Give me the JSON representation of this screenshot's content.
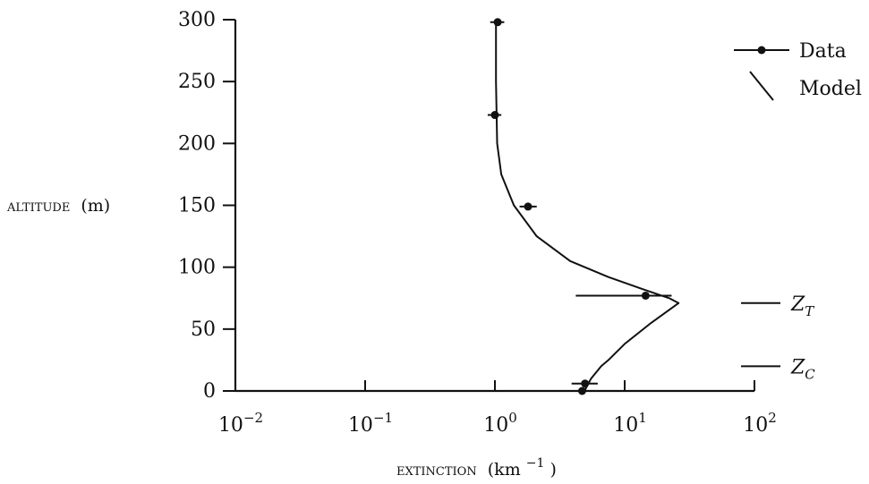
{
  "chart_data": {
    "type": "line",
    "title": "",
    "xlabel": "EXTINCTION (km⁻¹)",
    "xlabel_parts": {
      "prefix": "extinction",
      "unit": "(km",
      "sup": "−1",
      "close": ")"
    },
    "ylabel": "ALTITUDE (m)",
    "ylabel_parts": {
      "prefix": "altitude",
      "unit": "(m)"
    },
    "x_scale": "log",
    "xlim": [
      0.01,
      100
    ],
    "ylim": [
      0,
      300
    ],
    "x_ticks": [
      {
        "value": 0.01,
        "base": "10",
        "exp": "−2"
      },
      {
        "value": 0.1,
        "base": "10",
        "exp": "−1"
      },
      {
        "value": 1,
        "base": "10",
        "exp": "0"
      },
      {
        "value": 10,
        "base": "10",
        "exp": "1"
      },
      {
        "value": 100,
        "base": "10",
        "exp": "2"
      }
    ],
    "y_ticks": [
      0,
      50,
      100,
      150,
      200,
      250,
      300
    ],
    "grid": false,
    "legend_position": "top-right",
    "series": [
      {
        "name": "Data",
        "kind": "points-with-xerror",
        "points": [
          {
            "x": 1.05,
            "y": 298,
            "xerr": [
              0.92,
              1.18
            ]
          },
          {
            "x": 1.0,
            "y": 223,
            "xerr": [
              0.88,
              1.12
            ]
          },
          {
            "x": 1.8,
            "y": 149,
            "xerr": [
              1.55,
              2.1
            ]
          },
          {
            "x": 14.5,
            "y": 77,
            "xerr": [
              4.2,
              23.0
            ]
          },
          {
            "x": 4.95,
            "y": 6,
            "xerr": [
              3.9,
              6.2
            ]
          },
          {
            "x": 4.7,
            "y": 0,
            "xerr": [
              3.8,
              5.6
            ]
          }
        ]
      },
      {
        "name": "Model",
        "kind": "line",
        "points": [
          {
            "x": 1.02,
            "y": 300
          },
          {
            "x": 1.02,
            "y": 250
          },
          {
            "x": 1.04,
            "y": 200
          },
          {
            "x": 1.12,
            "y": 175
          },
          {
            "x": 1.4,
            "y": 150
          },
          {
            "x": 2.1,
            "y": 125
          },
          {
            "x": 3.8,
            "y": 105
          },
          {
            "x": 7.5,
            "y": 92
          },
          {
            "x": 14.0,
            "y": 82
          },
          {
            "x": 22.0,
            "y": 75
          },
          {
            "x": 26.0,
            "y": 71
          },
          {
            "x": 16.0,
            "y": 55
          },
          {
            "x": 10.0,
            "y": 38
          },
          {
            "x": 7.5,
            "y": 25
          },
          {
            "x": 6.6,
            "y": 20
          },
          {
            "x": 5.5,
            "y": 10
          },
          {
            "x": 4.9,
            "y": 0
          }
        ]
      }
    ],
    "legend": [
      {
        "label": "Data",
        "symbol": "line-dot"
      },
      {
        "label": "Model",
        "symbol": "slash"
      }
    ],
    "markers": [
      {
        "main": "Z",
        "sub": "T",
        "y": 71
      },
      {
        "main": "Z",
        "sub": "C",
        "y": 20
      }
    ]
  }
}
